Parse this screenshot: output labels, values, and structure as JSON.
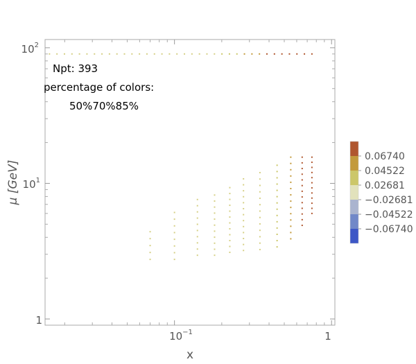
{
  "chart_data": {
    "type": "scatter",
    "xlabel": "x",
    "ylabel": "μ [GeV]",
    "xscale": "log",
    "yscale": "log",
    "xlim": [
      0.015,
      1.05
    ],
    "ylim": [
      0.9,
      115
    ],
    "x_ticks": [
      {
        "value": 0.1,
        "base": "10",
        "exp": "−1"
      },
      {
        "value": 1,
        "label": "1"
      }
    ],
    "y_ticks": [
      {
        "value": 1,
        "label": "1"
      },
      {
        "value": 10,
        "base": "10",
        "exp": "1"
      },
      {
        "value": 100,
        "base": "10",
        "exp": "2"
      }
    ],
    "grid": false,
    "annotations": {
      "npt": "Npt: 393",
      "percentage_title": "percentage of colors:",
      "percentages": "50%70%85%"
    },
    "legend": {
      "placement": "right",
      "labels": [
        "0.06740",
        "0.04522",
        "0.02681",
        "−0.02681",
        "−0.04522",
        "−0.06740"
      ],
      "colors": [
        "#b0562e",
        "#c39a3c",
        "#ccc76a",
        "#e2e2bc",
        "#aab4cf",
        "#7188c8",
        "#3d57c6"
      ]
    },
    "series": [
      {
        "kind": "row",
        "x_from": 0.016,
        "x_to": 0.75,
        "n": 36,
        "y": 90,
        "colors": [
          "#d6d086",
          "#d6d086",
          "#d6d086",
          "#d6d086",
          "#d6d086",
          "#d6d086",
          "#d6d086",
          "#d6d086",
          "#d6d086",
          "#d6d086",
          "#d6d086",
          "#d6d086",
          "#d6d086",
          "#d6d086",
          "#d6d086",
          "#d6d086",
          "#d6d086",
          "#d6d086",
          "#d6d086",
          "#d6d086",
          "#d6d086",
          "#d6d086",
          "#d6d086",
          "#ccc76a",
          "#ccc76a",
          "#ccc76a",
          "#c39a3c",
          "#c39a3c",
          "#c39a3c",
          "#b0562e",
          "#b0562e",
          "#b0562e",
          "#b0562e",
          "#b0562e",
          "#b0562e",
          "#b0562e"
        ]
      },
      {
        "kind": "column",
        "x": 0.07,
        "y_from": 2.75,
        "y_to": 4.4,
        "n": 5,
        "color": "#d6d086"
      },
      {
        "kind": "column",
        "x": 0.1,
        "y_from": 2.75,
        "y_to": 6.1,
        "n": 8,
        "color": "#d6d086"
      },
      {
        "kind": "column",
        "x": 0.14,
        "y_from": 2.95,
        "y_to": 7.6,
        "n": 10,
        "color": "#d6d086"
      },
      {
        "kind": "column",
        "x": 0.18,
        "y_from": 2.95,
        "y_to": 8.2,
        "n": 11,
        "color": "#d6d086"
      },
      {
        "kind": "column",
        "x": 0.225,
        "y_from": 3.1,
        "y_to": 9.3,
        "n": 12,
        "color": "#d6d086"
      },
      {
        "kind": "column",
        "x": 0.275,
        "y_from": 3.2,
        "y_to": 10.8,
        "n": 13,
        "color": "#d6d086"
      },
      {
        "kind": "column",
        "x": 0.35,
        "y_from": 3.25,
        "y_to": 12.0,
        "n": 13,
        "color": "#d6d086"
      },
      {
        "kind": "column",
        "x": 0.45,
        "y_from": 3.4,
        "y_to": 13.6,
        "n": 14,
        "color": "#ccc76a"
      },
      {
        "kind": "column",
        "x": 0.55,
        "y_from": 3.9,
        "y_to": 15.6,
        "n": 14,
        "color": "#c39a3c"
      },
      {
        "kind": "column",
        "x": 0.65,
        "y_from": 4.9,
        "y_to": 15.6,
        "n": 13,
        "color": "#b0562e"
      },
      {
        "kind": "column",
        "x": 0.75,
        "y_from": 6.0,
        "y_to": 15.6,
        "n": 12,
        "color": "#b0562e"
      }
    ]
  }
}
